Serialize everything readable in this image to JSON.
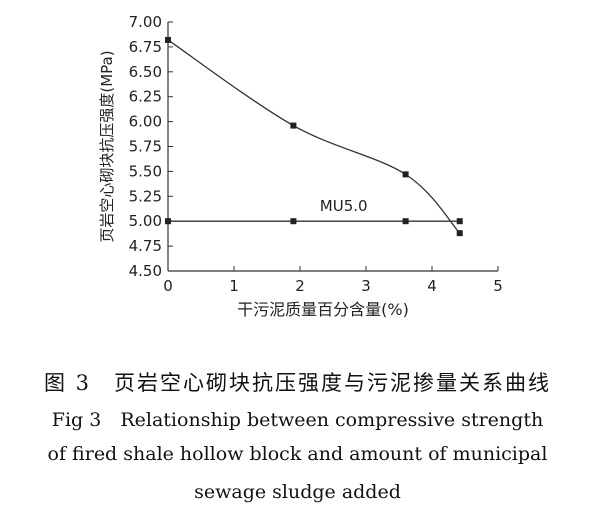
{
  "chart_data": {
    "type": "line",
    "xlabel": "干污泥质量百分含量(%)",
    "ylabel": "页岩空心砌块抗压强度(MPa)",
    "xlim": [
      0,
      5
    ],
    "ylim": [
      4.5,
      7.0
    ],
    "x_ticks": [
      "0",
      "1",
      "2",
      "3",
      "4",
      "5"
    ],
    "y_ticks": [
      "4.50",
      "4.75",
      "5.00",
      "5.25",
      "5.50",
      "5.75",
      "6.00",
      "6.25",
      "6.50",
      "6.75",
      "7.00"
    ],
    "grid": false,
    "series": [
      {
        "name": "",
        "points": [
          [
            0,
            6.82
          ],
          [
            1.9,
            5.96
          ],
          [
            3.6,
            5.47
          ],
          [
            4.42,
            4.88
          ]
        ],
        "fit_curve": true,
        "color": "#333333"
      },
      {
        "name": "MU5.0",
        "points": [
          [
            0,
            5.0
          ],
          [
            1.9,
            5.0
          ],
          [
            3.6,
            5.0
          ],
          [
            4.42,
            5.0
          ]
        ],
        "fit_curve": false,
        "color": "#333333"
      }
    ],
    "annotations": [
      {
        "text": "MU5.0",
        "x": 2.3,
        "y": 5.1
      }
    ]
  },
  "caption": {
    "zh": "图 3　页岩空心砌块抗压强度与污泥掺量关系曲线",
    "en_line1": "Fig 3　Relationship between compressive strength",
    "en_line2": "of fired shale hollow block and amount of municipal",
    "en_line3": "sewage sludge added"
  }
}
